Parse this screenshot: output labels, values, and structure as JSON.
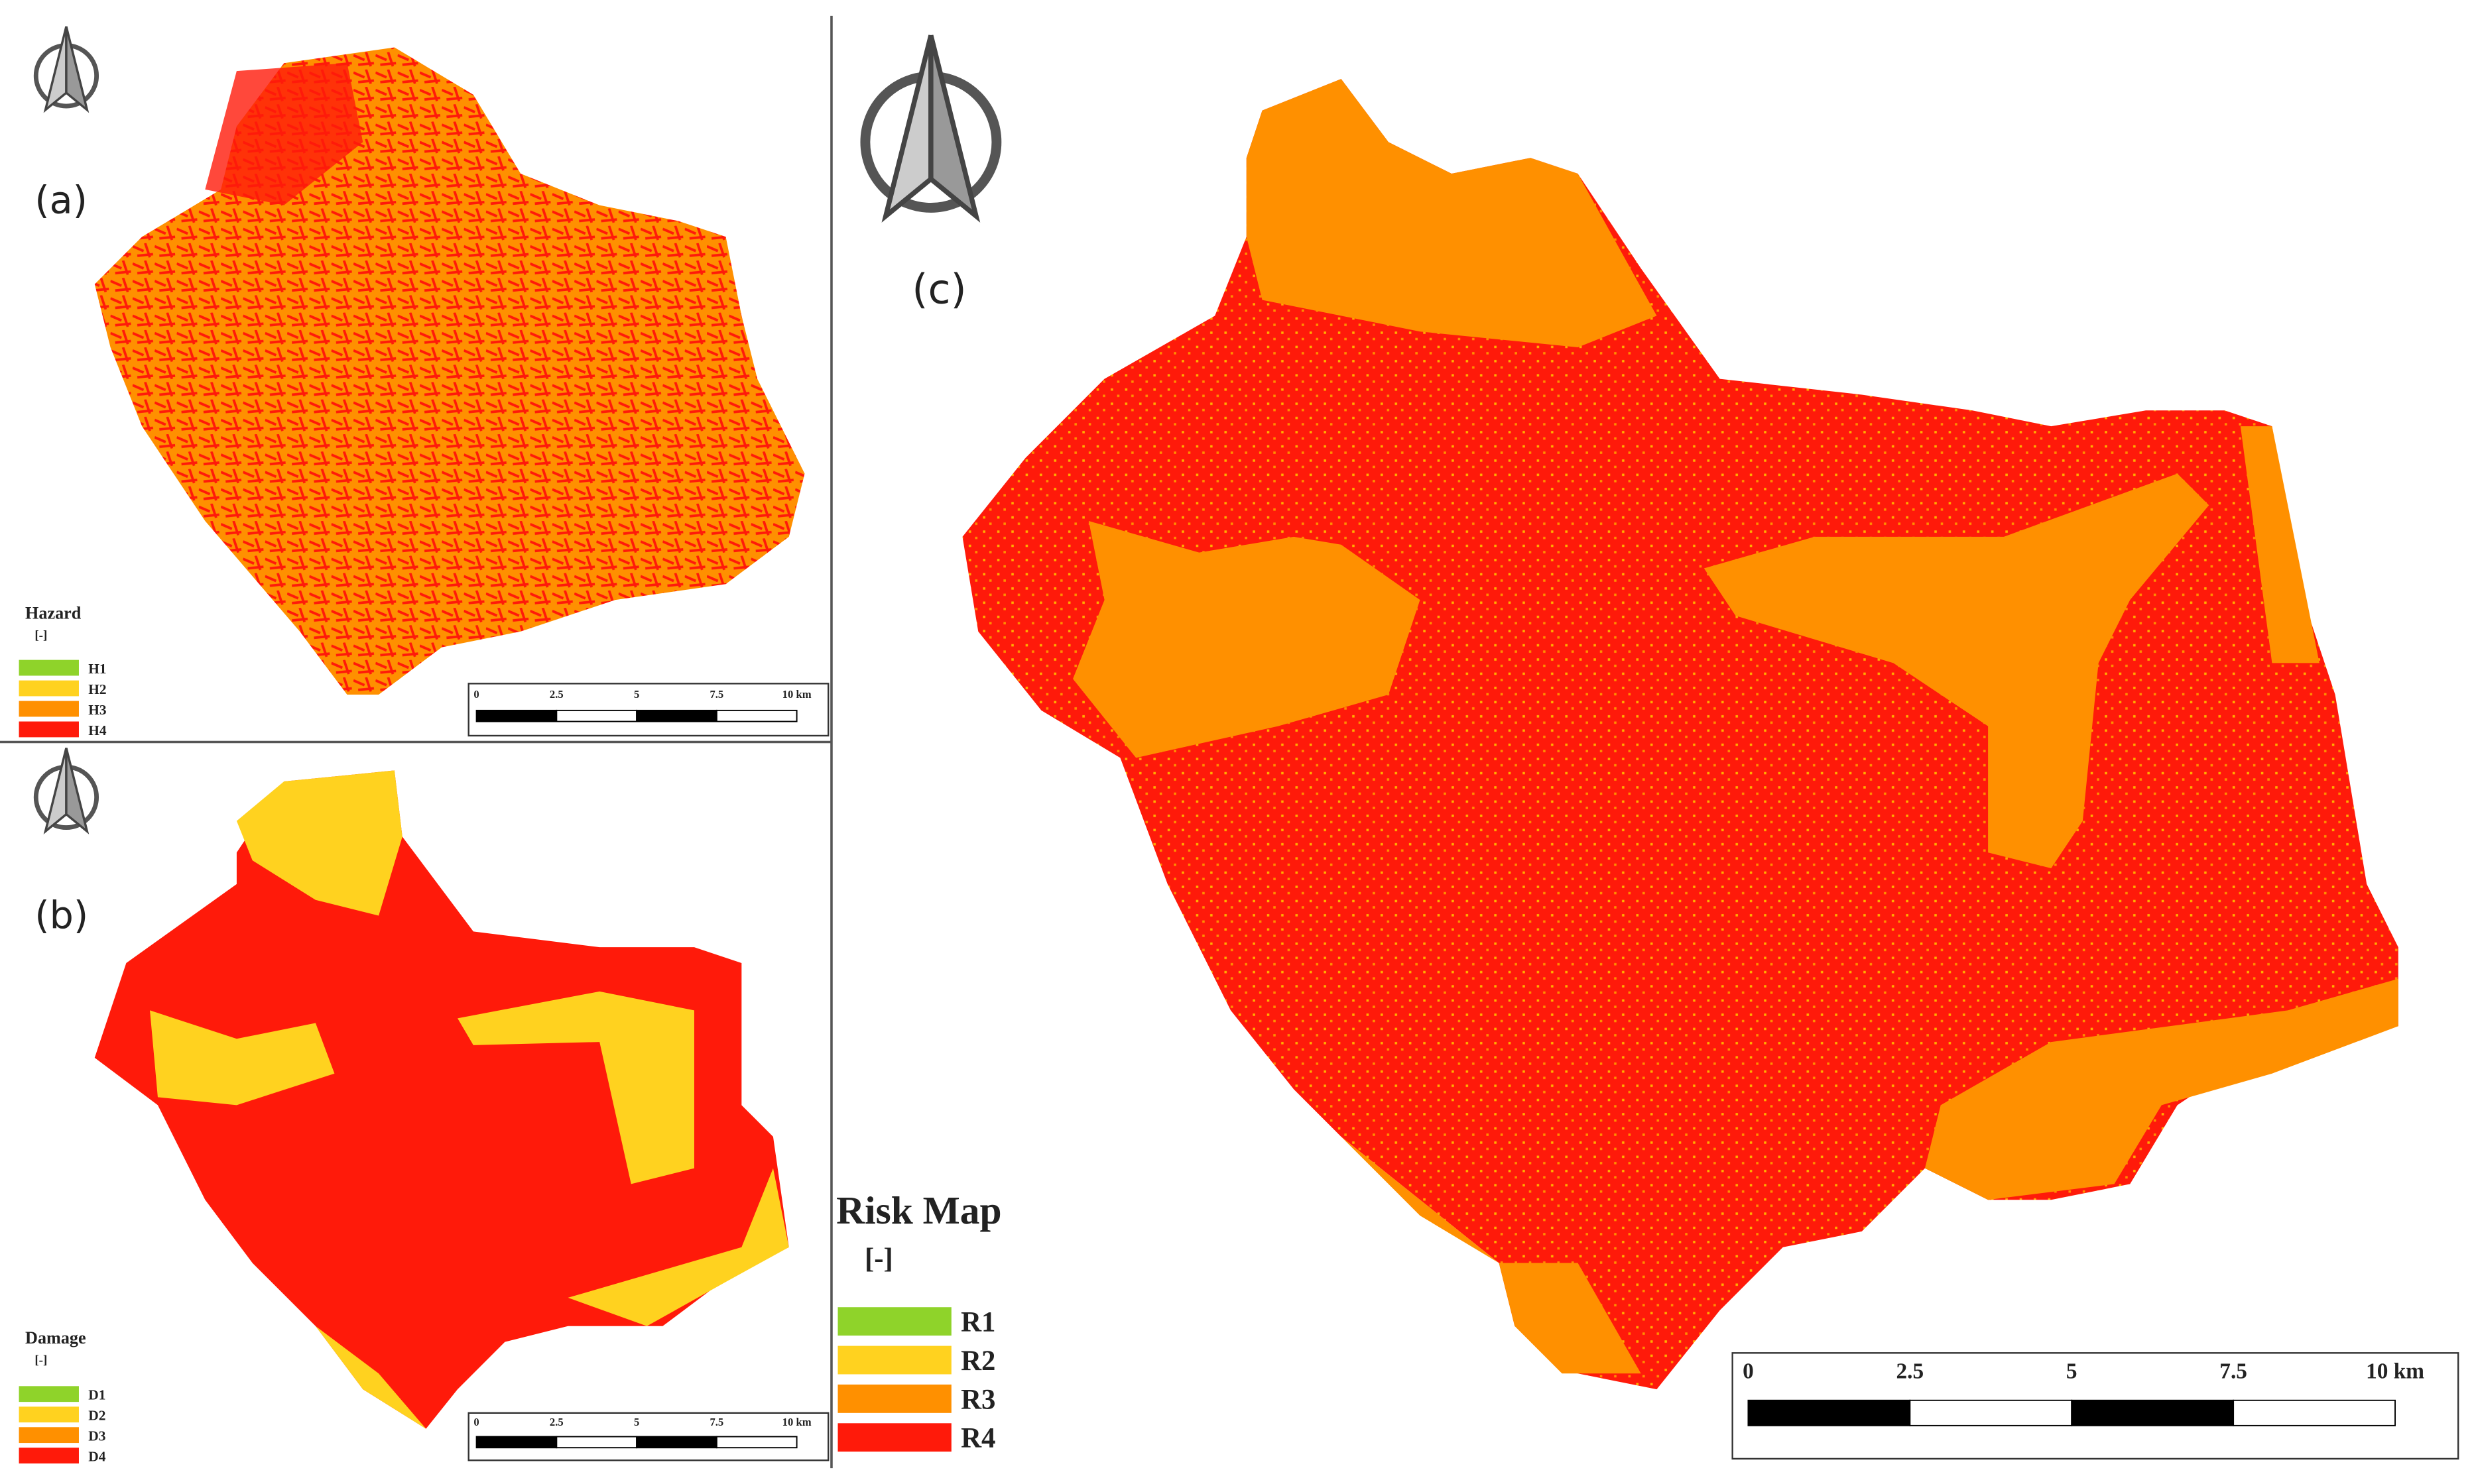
{
  "panels": [
    {
      "label": "(a)",
      "legend_title": "Hazard",
      "legend_unit": "[-]",
      "legend_items": [
        {
          "label": "H1",
          "color": "#8fd32a"
        },
        {
          "label": "H2",
          "color": "#ffd21f"
        },
        {
          "label": "H3",
          "color": "#ff9000"
        },
        {
          "label": "H4",
          "color": "#ff1a0a"
        }
      ],
      "scale_labels": [
        "0",
        "2.5",
        "5",
        "7.5",
        "10 km"
      ]
    },
    {
      "label": "(b)",
      "legend_title": "Damage",
      "legend_unit": "[-]",
      "legend_items": [
        {
          "label": "D1",
          "color": "#8fd32a"
        },
        {
          "label": "D2",
          "color": "#ffd21f"
        },
        {
          "label": "D3",
          "color": "#ff9000"
        },
        {
          "label": "D4",
          "color": "#ff1a0a"
        }
      ],
      "scale_labels": [
        "0",
        "2.5",
        "5",
        "7.5",
        "10 km"
      ]
    },
    {
      "label": "(c)",
      "legend_title": "Risk Map",
      "legend_unit": "[-]",
      "legend_items": [
        {
          "label": "R1",
          "color": "#8fd32a"
        },
        {
          "label": "R2",
          "color": "#ffd21f"
        },
        {
          "label": "R3",
          "color": "#ff9000"
        },
        {
          "label": "R4",
          "color": "#ff1a0a"
        }
      ],
      "scale_labels": [
        "0",
        "2.5",
        "5",
        "7.5",
        "10 km"
      ]
    }
  ]
}
